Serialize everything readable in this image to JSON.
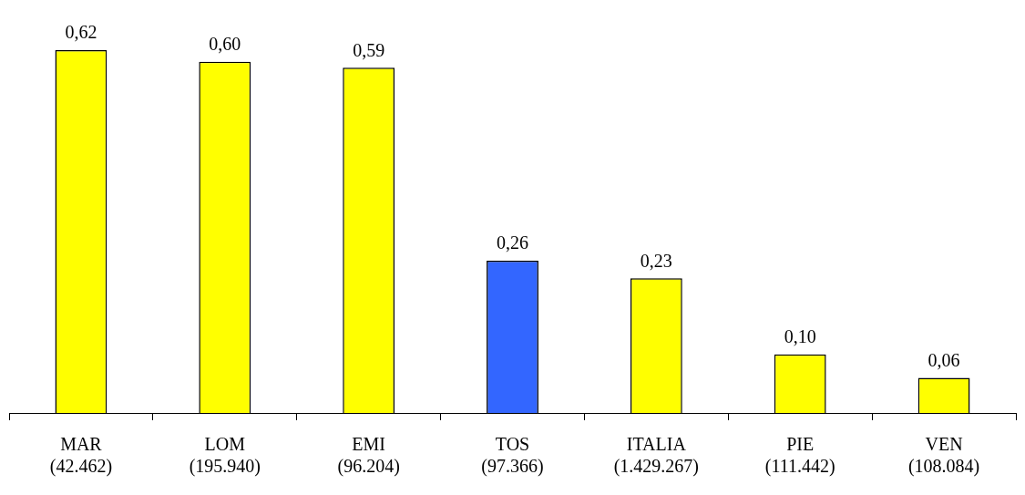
{
  "chart_data": {
    "type": "bar",
    "categories": [
      "MAR\n(42.462)",
      "LOM\n(195.940)",
      "EMI\n(96.204)",
      "TOS\n(97.366)",
      "ITALIA\n(1.429.267)",
      "PIE\n(111.442)",
      "VEN\n(108.084)"
    ],
    "values": [
      0.62,
      0.6,
      0.59,
      0.26,
      0.23,
      0.1,
      0.06
    ],
    "colors": [
      "#ffff00",
      "#ffff00",
      "#ffff00",
      "#3366ff",
      "#ffff00",
      "#ffff00",
      "#ffff00"
    ],
    "value_labels": [
      "0,62",
      "0,60",
      "0,59",
      "0,26",
      "0,23",
      "0,10",
      "0,06"
    ],
    "grid": false,
    "legend": false
  }
}
